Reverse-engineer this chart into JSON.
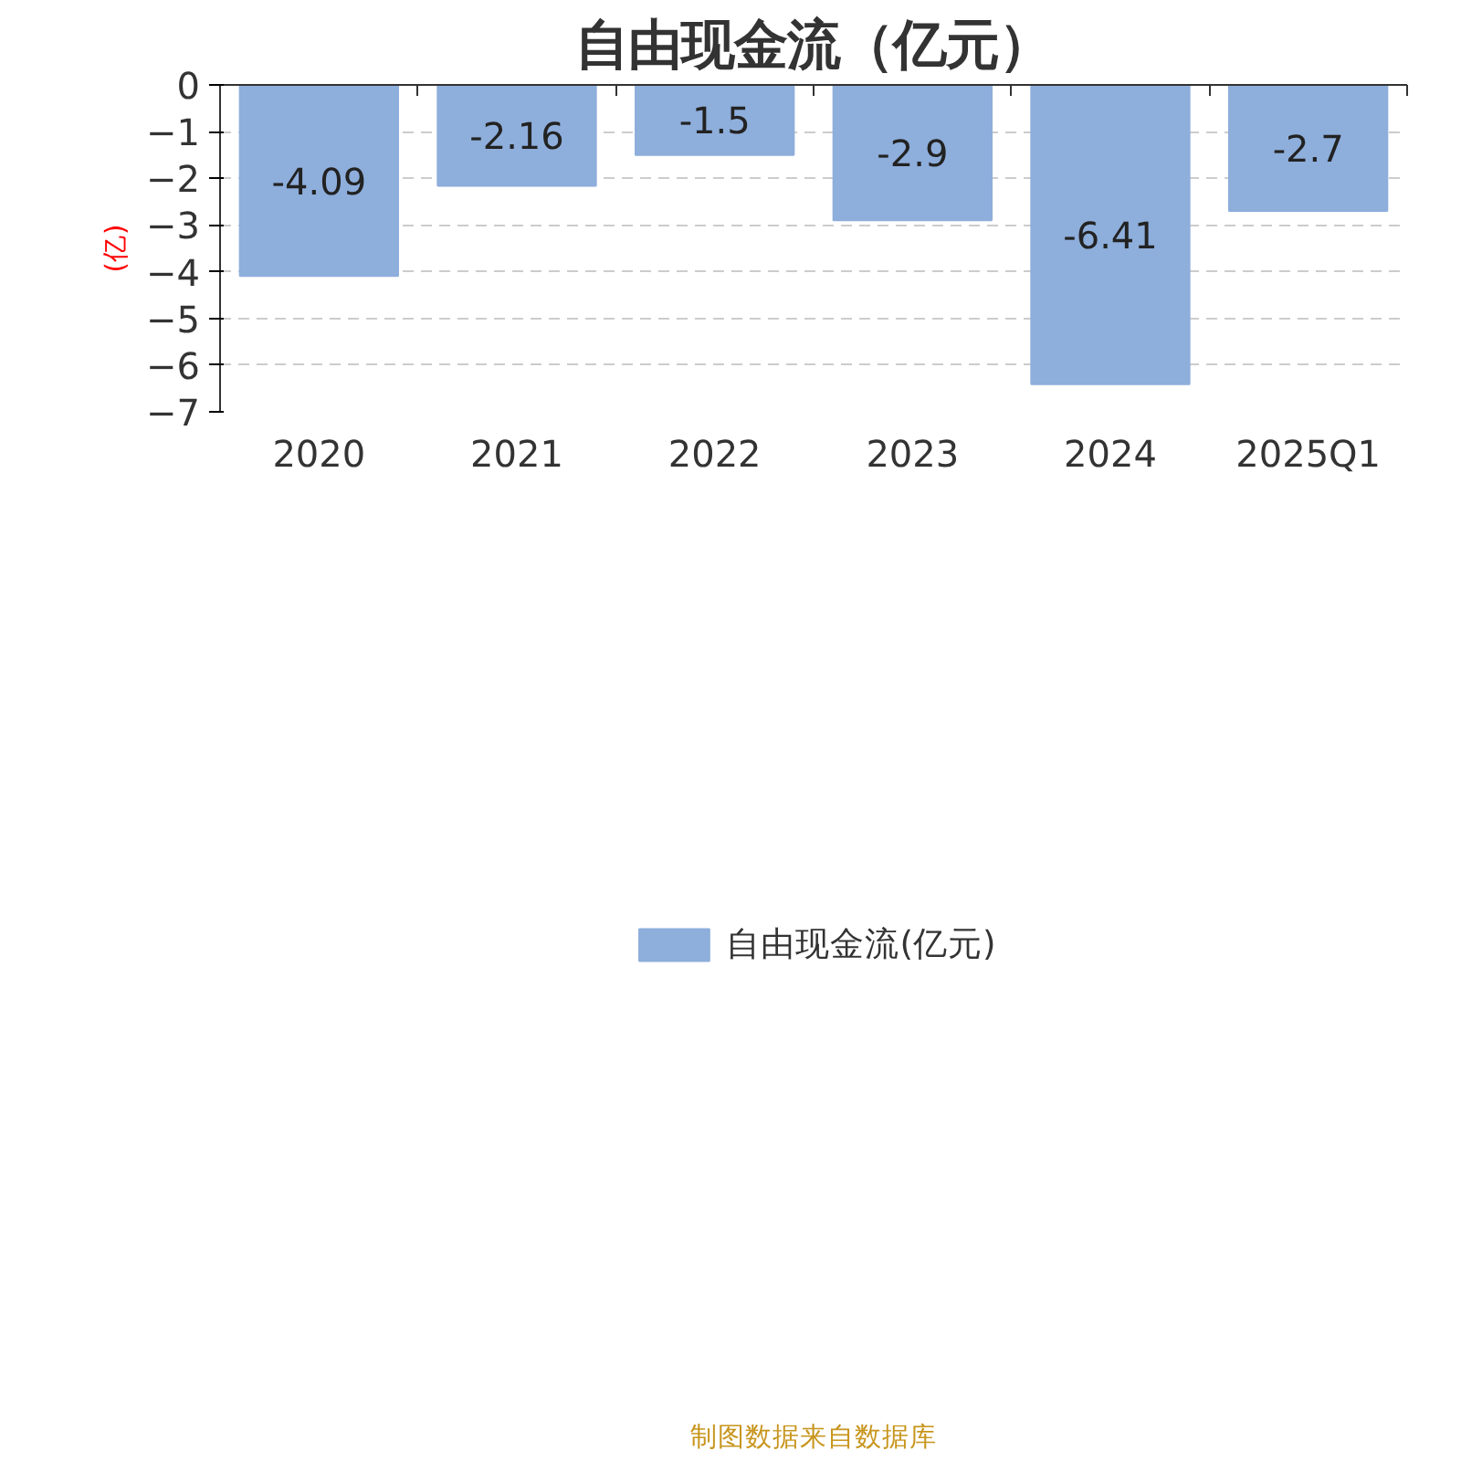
{
  "chart_data": {
    "type": "bar",
    "title": "自由现金流（亿元）",
    "ylabel": "(亿)",
    "categories": [
      "2020",
      "2021",
      "2022",
      "2023",
      "2024",
      "2025Q1"
    ],
    "series": [
      {
        "name": "自由现金流(亿元)",
        "color": "#8eaedb",
        "values": [
          -4.09,
          -2.16,
          -1.5,
          -2.9,
          -6.41,
          -2.7
        ]
      }
    ],
    "ylim": [
      -7,
      0
    ],
    "yticks": [
      -7,
      -6,
      -5,
      -4,
      -3,
      -2,
      -1,
      0
    ],
    "grid": "y",
    "legend": "bottom",
    "data_labels": true,
    "annotations": [
      "制图数据来自数据库"
    ]
  }
}
